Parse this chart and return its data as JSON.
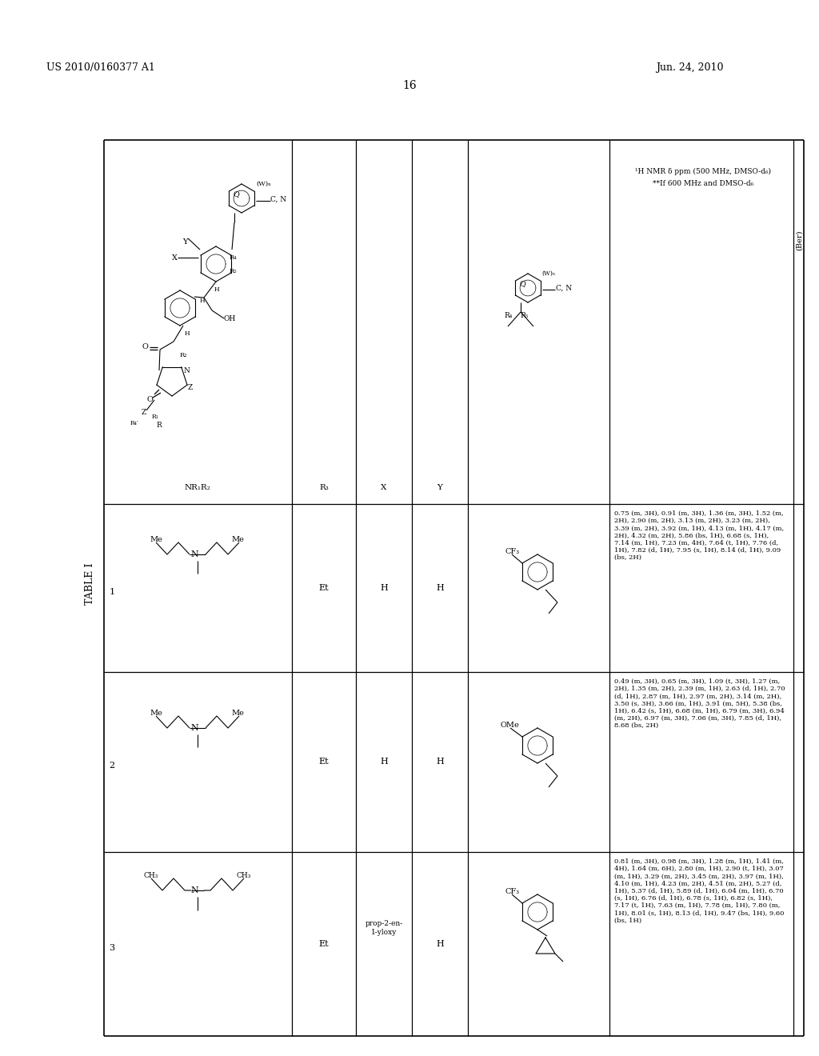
{
  "page_number": "16",
  "patent_number": "US 2010/0160377 A1",
  "patent_date": "Jun. 24, 2010",
  "table_title": "TABLE I",
  "ber_label": "(Ber)",
  "nmr_header1": "¹H NMR δ ppm (500 MHz, DMSO-d₆)",
  "nmr_header2": "**If 600 MHz and DMSO-d₆",
  "row_numbers": [
    "1",
    "2",
    "3"
  ],
  "R3_values": [
    "Et",
    "Et",
    "Et"
  ],
  "X_values": [
    "H",
    "H",
    "prop-2-en-\n1-yloxy"
  ],
  "Y_values": [
    "H",
    "H",
    "H"
  ],
  "nmr1": "0.75 (m, 3H), 0.91 (m, 3H), 1.36 (m, 3H), 1.52 (m,\n2H), 2.90 (m, 2H), 3.13 (m, 2H), 3.23 (m, 2H),\n3.39 (m, 2H), 3.92 (m, 1H), 4.13 (m, 1H), 4.17 (m,\n2H), 4.32 (m, 2H), 5.86 (bs, 1H), 6.68 (s, 1H),\n7.14 (m, 1H), 7.23 (m, 4H), 7.64 (t, 1H), 7.76 (d,\n1H), 7.82 (d, 1H), 7.95 (s, 1H), 8.14 (d, 1H), 9.09\n(bs, 2H)",
  "nmr2": "0.49 (m, 3H), 0.65 (m, 3H), 1.09 (t, 3H), 1.27 (m,\n2H), 1.35 (m, 2H), 2.39 (m, 1H), 2.63 (d, 1H), 2.70\n(d, 1H), 2.87 (m, 1H), 2.97 (m, 2H), 3.14 (m, 2H),\n3.50 (s, 3H), 3.66 (m, 1H), 3.91 (m, 5H), 5.38 (bs,\n1H), 6.42 (s, 1H), 6.68 (m, 1H), 6.79 (m, 3H), 6.94\n(m, 2H), 6.97 (m, 3H), 7.06 (m, 3H), 7.85 (d, 1H),\n8.68 (bs, 2H)",
  "nmr3": "0.81 (m, 3H), 0.98 (m, 3H), 1.28 (m, 1H), 1.41 (m,\n4H), 1.64 (m, 6H), 2.80 (m, 1H), 2.90 (t, 1H), 3.07\n(m, 1H), 3.29 (m, 2H), 3.45 (m, 2H), 3.97 (m, 1H),\n4.10 (m, 1H), 4.23 (m, 2H), 4.51 (m, 2H), 5.27 (d,\n1H), 5.37 (d, 1H), 5.89 (d, 1H), 6.04 (m, 1H), 6.70\n(s, 1H), 6.76 (d, 1H), 6.78 (s, 1H), 6.82 (s, 1H),\n7.17 (t, 1H), 7.63 (m, 1H), 7.78 (m, 1H), 7.80 (m,\n1H), 8.01 (s, 1H), 8.13 (d, 1H), 9.47 (bs, 1H), 9.60\n(bs, 1H)",
  "bg_color": "#ffffff",
  "line_color": "#000000"
}
